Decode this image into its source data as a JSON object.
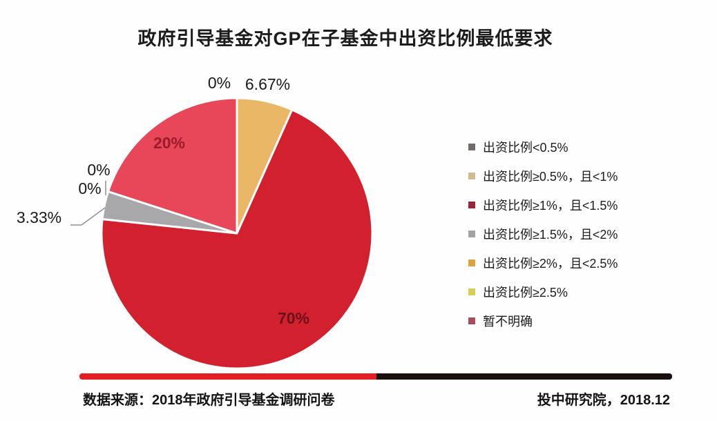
{
  "title": "政府引导基金对GP在子基金中出资比例最低要求",
  "chart_data": {
    "type": "pie",
    "title": "政府引导基金对GP在子基金中出资比例最低要求",
    "categories": [
      "出资比例<0.5%",
      "出资比例≥0.5%，且<1%",
      "出资比例≥1%，且<1.5%",
      "出资比例≥1.5%，且<2%",
      "出资比例≥2%，且<2.5%",
      "出资比例≥2.5%",
      "暂不明确"
    ],
    "values": [
      0,
      6.67,
      70,
      3.33,
      0,
      0,
      20
    ],
    "unit": "%",
    "colors": [
      "#716c6c",
      "#e9b766",
      "#d2202f",
      "#a8a8aa",
      "#dca43e",
      "#d6ce58",
      "#e8475a"
    ],
    "start_angle_deg": 0,
    "direction": "clockwise",
    "legend_position": "right",
    "data_labels": [
      {
        "text": "0%",
        "color": "#1a1a1a"
      },
      {
        "text": "6.67%",
        "color": "#1a1a1a"
      },
      {
        "text": "70%",
        "color": "#6b1119"
      },
      {
        "text": "3.33%",
        "color": "#1a1a1a"
      },
      {
        "text": "0%",
        "color": "#1a1a1a"
      },
      {
        "text": "0%",
        "color": "#1a1a1a"
      },
      {
        "text": "20%",
        "color": "#9b1b2b"
      }
    ]
  },
  "legend": {
    "items": [
      {
        "label": "出资比例<0.5%",
        "color": "#716c6c"
      },
      {
        "label": "出资比例≥0.5%，且<1%",
        "color": "#cfbd92"
      },
      {
        "label": "出资比例≥1%，且<1.5%",
        "color": "#962639"
      },
      {
        "label": "出资比例≥1.5%，且<2%",
        "color": "#a3a3a3"
      },
      {
        "label": "出资比例≥2%，且<2.5%",
        "color": "#dca43e"
      },
      {
        "label": "出资比例≥2.5%",
        "color": "#d6ce58"
      },
      {
        "label": "暂不明确",
        "color": "#a54e5e"
      }
    ]
  },
  "footer": {
    "source": "数据来源：2018年政府引导基金调研问卷",
    "attribution": "投中研究院，2018.12",
    "bar_colors": {
      "red": "#e41f24",
      "black": "#16100f"
    }
  }
}
